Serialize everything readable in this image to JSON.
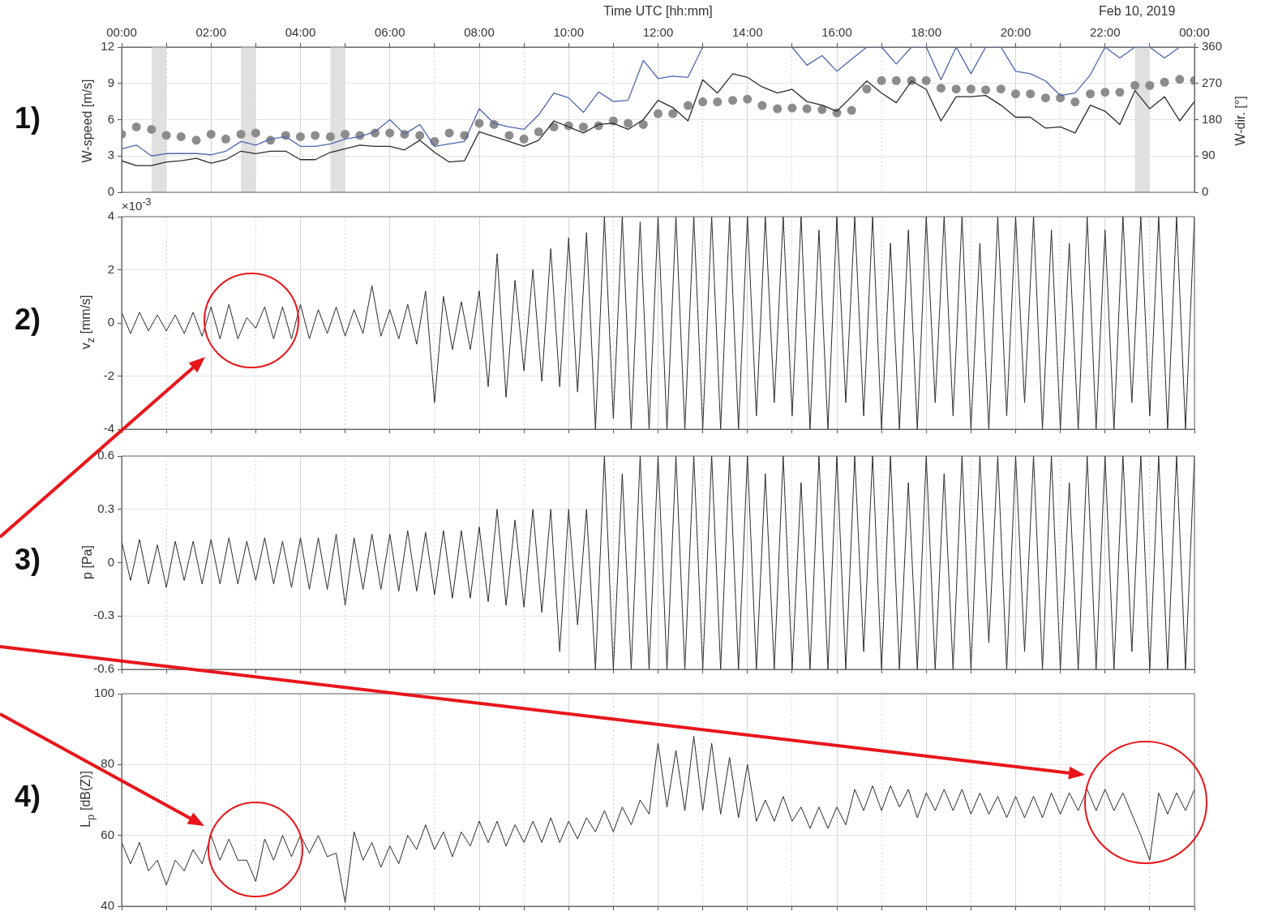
{
  "chart_data": [
    {
      "type": "line",
      "xlabel": "Time UTC [hh:mm]",
      "ylabel": "W-speed [m/s]",
      "y2label": "W-dir. [°]",
      "annotations": [
        "1)",
        "Feb 10, 2019"
      ],
      "x": [
        0,
        0.33,
        0.67,
        1,
        1.33,
        1.67,
        2,
        2.33,
        2.67,
        3,
        3.33,
        3.67,
        4,
        4.33,
        4.67,
        5,
        5.33,
        5.67,
        6,
        6.33,
        6.67,
        7,
        7.33,
        7.67,
        8,
        8.33,
        8.67,
        9,
        9.33,
        9.67,
        10,
        10.33,
        10.67,
        11,
        11.33,
        11.67,
        12,
        12.33,
        12.67,
        13,
        13.33,
        13.67,
        14,
        14.33,
        14.67,
        15,
        15.33,
        15.67,
        16,
        16.33,
        16.67,
        17,
        17.33,
        17.67,
        18,
        18.33,
        18.67,
        19,
        19.33,
        19.67,
        20,
        20.33,
        20.67,
        21,
        21.33,
        21.67,
        22,
        22.33,
        22.67,
        23,
        23.33,
        23.67,
        24
      ],
      "series": [
        {
          "color": "#4a67ad",
          "values": [
            3.6,
            3.9,
            3.0,
            3.2,
            3.2,
            3.2,
            3.1,
            3.4,
            4.2,
            3.9,
            4.4,
            4.6,
            3.8,
            3.8,
            4.0,
            4.4,
            4.6,
            5.0,
            6.0,
            4.8,
            5.6,
            3.8,
            4.0,
            4.2,
            6.9,
            5.7,
            5.4,
            5.2,
            6.4,
            8.2,
            7.8,
            6.6,
            8.3,
            7.5,
            7.6,
            10.9,
            9.4,
            9.6,
            9.5,
            12,
            null,
            null,
            null,
            null,
            null,
            12,
            10.5,
            11.3,
            10.0,
            11.0,
            12,
            12,
            10.6,
            12,
            12,
            9.3,
            12,
            9.8,
            12,
            12,
            10.0,
            9.8,
            9.2,
            8.0,
            8.2,
            9.7,
            12,
            11.1,
            12,
            12,
            11.1,
            12,
            null
          ]
        },
        {
          "color": "#2b2b2b",
          "values": [
            2.6,
            2.2,
            2.2,
            2.5,
            2.6,
            2.8,
            2.4,
            2.7,
            3.4,
            3.2,
            3.4,
            3.4,
            2.7,
            2.7,
            3.3,
            3.6,
            3.9,
            3.8,
            3.8,
            3.5,
            4.3,
            3.3,
            2.5,
            2.6,
            5.0,
            4.6,
            4.2,
            3.8,
            4.3,
            5.9,
            5.4,
            4.9,
            5.6,
            5.7,
            5.2,
            6.0,
            7.6,
            7.0,
            5.9,
            9.3,
            8.2,
            9.8,
            9.5,
            8.7,
            8.2,
            8.5,
            7.5,
            7.2,
            6.7,
            7.9,
            9.2,
            8.2,
            7.4,
            9.2,
            8.5,
            5.9,
            7.9,
            7.9,
            8.0,
            7.2,
            6.2,
            6.2,
            5.3,
            5.4,
            4.9,
            7.2,
            6.7,
            5.6,
            8.4,
            6.9,
            7.9,
            5.9,
            7.5
          ]
        },
        {
          "type": "scatter",
          "axis": "y2",
          "marker": "circle",
          "color": "#8c8c8c",
          "values": [
            144,
            162,
            156,
            141,
            138,
            129,
            144,
            132,
            144,
            147,
            129,
            141,
            138,
            141,
            138,
            144,
            141,
            147,
            147,
            144,
            141,
            126,
            147,
            141,
            171,
            168,
            141,
            132,
            150,
            162,
            165,
            162,
            165,
            177,
            171,
            168,
            195,
            195,
            215,
            224,
            224,
            228,
            231,
            215,
            207,
            209,
            207,
            205,
            197,
            203,
            256,
            277,
            277,
            277,
            277,
            258,
            256,
            256,
            254,
            256,
            244,
            244,
            234,
            234,
            224,
            244,
            248,
            248,
            265,
            265,
            273,
            280,
            277
          ]
        }
      ],
      "xlim": [
        0,
        24
      ],
      "xticks": [
        {
          "value": 0,
          "label": "00:00"
        },
        {
          "value": 1,
          "label": null
        },
        {
          "value": 2,
          "label": "02:00"
        },
        {
          "value": 3,
          "label": null
        },
        {
          "value": 4,
          "label": "04:00"
        },
        {
          "value": 5,
          "label": null
        },
        {
          "value": 6,
          "label": "06:00"
        },
        {
          "value": 7,
          "label": null
        },
        {
          "value": 8,
          "label": "08:00"
        },
        {
          "value": 9,
          "label": null
        },
        {
          "value": 10,
          "label": "10:00"
        },
        {
          "value": 11,
          "label": null
        },
        {
          "value": 12,
          "label": "12:00"
        },
        {
          "value": 13,
          "label": null
        },
        {
          "value": 14,
          "label": "14:00"
        },
        {
          "value": 15,
          "label": null
        },
        {
          "value": 16,
          "label": "16:00"
        },
        {
          "value": 17,
          "label": null
        },
        {
          "value": 18,
          "label": "18:00"
        },
        {
          "value": 19,
          "label": null
        },
        {
          "value": 20,
          "label": "20:00"
        },
        {
          "value": 21,
          "label": null
        },
        {
          "value": 22,
          "label": "22:00"
        },
        {
          "value": 23,
          "label": null
        },
        {
          "value": 24,
          "label": "00:00"
        }
      ],
      "ylim": [
        0,
        12
      ],
      "yticks": [
        0,
        3,
        6,
        9,
        12
      ],
      "y2lim": [
        0,
        360
      ],
      "y2ticks": [
        0,
        90,
        180,
        270,
        360
      ],
      "bands": [
        {
          "axis": "x",
          "from": 0.67,
          "to": 1,
          "color": "#e0e0e0"
        },
        {
          "axis": "x",
          "from": 2.67,
          "to": 3,
          "color": "#e0e0e0"
        },
        {
          "axis": "x",
          "from": 4.67,
          "to": 5,
          "color": "#e0e0e0"
        },
        {
          "axis": "x",
          "from": 22.67,
          "to": 23,
          "color": "#e0e0e0"
        }
      ],
      "grid": true
    },
    {
      "type": "line",
      "ylabel": "v$_{z}$ [mm/s]",
      "annotations": [
        "2)",
        "×10$^{-3}$"
      ],
      "x": [
        0,
        0.2,
        0.4,
        0.6,
        0.8,
        1,
        1.2,
        1.4,
        1.6,
        1.8,
        2,
        2.2,
        2.4,
        2.6,
        2.8,
        3,
        3.2,
        3.4,
        3.6,
        3.8,
        4,
        4.2,
        4.4,
        4.6,
        4.8,
        5,
        5.2,
        5.4,
        5.6,
        5.8,
        6,
        6.2,
        6.4,
        6.6,
        6.8,
        7,
        7.2,
        7.4,
        7.6,
        7.8,
        8,
        8.2,
        8.4,
        8.6,
        8.8,
        9,
        9.2,
        9.4,
        9.6,
        9.8,
        10,
        10.2,
        10.4,
        10.6,
        10.8,
        11,
        11.2,
        11.4,
        11.6,
        11.8,
        12,
        12.2,
        12.4,
        12.6,
        12.8,
        13,
        13.2,
        13.4,
        13.6,
        13.8,
        14,
        14.2,
        14.4,
        14.6,
        14.8,
        15,
        15.2,
        15.4,
        15.6,
        15.8,
        16,
        16.2,
        16.4,
        16.6,
        16.8,
        17,
        17.2,
        17.4,
        17.6,
        17.8,
        18,
        18.2,
        18.4,
        18.6,
        18.8,
        19,
        19.2,
        19.4,
        19.6,
        19.8,
        20,
        20.2,
        20.4,
        20.6,
        20.8,
        21,
        21.2,
        21.4,
        21.6,
        21.8,
        22,
        22.2,
        22.4,
        22.6,
        22.8,
        23,
        23.2,
        23.4,
        23.6,
        23.8,
        24
      ],
      "series": [
        {
          "color": "#2b2b2b",
          "values": [
            0.4,
            -0.4,
            0.4,
            -0.3,
            0.3,
            -0.3,
            0.3,
            -0.4,
            0.4,
            -0.5,
            0.6,
            -0.6,
            0.7,
            -0.6,
            0.2,
            -0.2,
            0.6,
            -0.6,
            0.6,
            -0.6,
            0.7,
            -0.6,
            0.5,
            -0.4,
            0.6,
            -0.5,
            0.5,
            -0.4,
            1.4,
            -0.5,
            0.5,
            -0.6,
            0.7,
            -0.8,
            1.2,
            -3.0,
            1,
            -1,
            0.8,
            -1,
            1.2,
            -2.4,
            2.6,
            -2.8,
            1.6,
            -1.8,
            2,
            -2.2,
            2.8,
            -2.4,
            3.2,
            -2.6,
            3.4,
            -4,
            4,
            -3.6,
            4,
            -4,
            3.8,
            -4,
            4,
            -4,
            4,
            -4,
            4,
            -4,
            4,
            -4,
            4,
            -4,
            4,
            -3.5,
            4,
            -3,
            4,
            -3.5,
            4,
            -4,
            3.5,
            -4,
            4,
            -3,
            4,
            -3.5,
            4,
            -4,
            3,
            -4,
            3.5,
            -4,
            4,
            -3,
            4,
            -3.5,
            4,
            -4,
            3,
            -4,
            4,
            -3.5,
            4,
            -3,
            4,
            -4,
            3.5,
            -4,
            3,
            -4,
            4,
            -4,
            3.5,
            -4,
            4,
            -3,
            4,
            -3.5,
            4,
            -4,
            4,
            -4,
            4
          ]
        }
      ],
      "xlim": [
        0,
        24
      ],
      "xticks": [
        {
          "value": 0,
          "label": null
        },
        {
          "value": 1,
          "label": null
        },
        {
          "value": 2,
          "label": null
        },
        {
          "value": 3,
          "label": null
        },
        {
          "value": 4,
          "label": null
        },
        {
          "value": 5,
          "label": null
        },
        {
          "value": 6,
          "label": null
        },
        {
          "value": 7,
          "label": null
        },
        {
          "value": 8,
          "label": null
        },
        {
          "value": 9,
          "label": null
        },
        {
          "value": 10,
          "label": null
        },
        {
          "value": 11,
          "label": null
        },
        {
          "value": 12,
          "label": null
        },
        {
          "value": 13,
          "label": null
        },
        {
          "value": 14,
          "label": null
        },
        {
          "value": 15,
          "label": null
        },
        {
          "value": 16,
          "label": null
        },
        {
          "value": 17,
          "label": null
        },
        {
          "value": 18,
          "label": null
        },
        {
          "value": 19,
          "label": null
        },
        {
          "value": 20,
          "label": null
        },
        {
          "value": 21,
          "label": null
        },
        {
          "value": 22,
          "label": null
        },
        {
          "value": 23,
          "label": null
        },
        {
          "value": 24,
          "label": null
        }
      ],
      "ylim": [
        -4,
        4
      ],
      "yticks": [
        -4,
        -2,
        0,
        2,
        4
      ],
      "grid": true,
      "tick_labels": "y"
    },
    {
      "type": "line",
      "ylabel": "p [Pa]",
      "annotations": [
        "3)"
      ],
      "x": [
        0,
        0.2,
        0.4,
        0.6,
        0.8,
        1,
        1.2,
        1.4,
        1.6,
        1.8,
        2,
        2.2,
        2.4,
        2.6,
        2.8,
        3,
        3.2,
        3.4,
        3.6,
        3.8,
        4,
        4.2,
        4.4,
        4.6,
        4.8,
        5,
        5.2,
        5.4,
        5.6,
        5.8,
        6,
        6.2,
        6.4,
        6.6,
        6.8,
        7,
        7.2,
        7.4,
        7.6,
        7.8,
        8,
        8.2,
        8.4,
        8.6,
        8.8,
        9,
        9.2,
        9.4,
        9.6,
        9.8,
        10,
        10.2,
        10.4,
        10.6,
        10.8,
        11,
        11.2,
        11.4,
        11.6,
        11.8,
        12,
        12.2,
        12.4,
        12.6,
        12.8,
        13,
        13.2,
        13.4,
        13.6,
        13.8,
        14,
        14.2,
        14.4,
        14.6,
        14.8,
        15,
        15.2,
        15.4,
        15.6,
        15.8,
        16,
        16.2,
        16.4,
        16.6,
        16.8,
        17,
        17.2,
        17.4,
        17.6,
        17.8,
        18,
        18.2,
        18.4,
        18.6,
        18.8,
        19,
        19.2,
        19.4,
        19.6,
        19.8,
        20,
        20.2,
        20.4,
        20.6,
        20.8,
        21,
        21.2,
        21.4,
        21.6,
        21.8,
        22,
        22.2,
        22.4,
        22.6,
        22.8,
        23,
        23.2,
        23.4,
        23.6,
        23.8,
        24
      ],
      "series": [
        {
          "color": "#2b2b2b",
          "values": [
            0.12,
            -0.1,
            0.13,
            -0.12,
            0.1,
            -0.14,
            0.12,
            -0.1,
            0.12,
            -0.12,
            0.13,
            -0.12,
            0.14,
            -0.12,
            0.12,
            -0.1,
            0.14,
            -0.12,
            0.12,
            -0.14,
            0.14,
            -0.15,
            0.14,
            -0.15,
            0.16,
            -0.24,
            0.14,
            -0.15,
            0.16,
            -0.15,
            0.16,
            -0.16,
            0.18,
            -0.16,
            0.17,
            -0.18,
            0.18,
            -0.2,
            0.18,
            -0.2,
            0.2,
            -0.22,
            0.3,
            -0.24,
            0.24,
            -0.25,
            0.3,
            -0.28,
            0.3,
            -0.5,
            0.3,
            -0.35,
            0.3,
            -0.6,
            0.6,
            -0.6,
            0.5,
            -0.6,
            0.6,
            -0.6,
            0.6,
            -0.6,
            0.6,
            -0.6,
            0.6,
            -0.6,
            0.6,
            -0.6,
            0.6,
            -0.6,
            0.6,
            -0.6,
            0.5,
            -0.6,
            0.6,
            -0.6,
            0.45,
            -0.6,
            0.6,
            -0.6,
            0.6,
            -0.6,
            0.6,
            -0.5,
            0.6,
            -0.6,
            0.6,
            -0.6,
            0.45,
            -0.6,
            0.6,
            -0.6,
            0.5,
            -0.6,
            0.6,
            -0.6,
            0.6,
            -0.45,
            0.6,
            -0.6,
            0.6,
            -0.5,
            0.6,
            -0.6,
            0.6,
            -0.6,
            0.45,
            -0.6,
            0.6,
            -0.6,
            0.6,
            -0.6,
            0.6,
            -0.5,
            0.6,
            -0.6,
            0.6,
            -0.6,
            0.6,
            -0.6,
            0.6
          ]
        }
      ],
      "xlim": [
        0,
        24
      ],
      "xticks": [
        {
          "value": 0,
          "label": null
        },
        {
          "value": 1,
          "label": null
        },
        {
          "value": 2,
          "label": null
        },
        {
          "value": 3,
          "label": null
        },
        {
          "value": 4,
          "label": null
        },
        {
          "value": 5,
          "label": null
        },
        {
          "value": 6,
          "label": null
        },
        {
          "value": 7,
          "label": null
        },
        {
          "value": 8,
          "label": null
        },
        {
          "value": 9,
          "label": null
        },
        {
          "value": 10,
          "label": null
        },
        {
          "value": 11,
          "label": null
        },
        {
          "value": 12,
          "label": null
        },
        {
          "value": 13,
          "label": null
        },
        {
          "value": 14,
          "label": null
        },
        {
          "value": 15,
          "label": null
        },
        {
          "value": 16,
          "label": null
        },
        {
          "value": 17,
          "label": null
        },
        {
          "value": 18,
          "label": null
        },
        {
          "value": 19,
          "label": null
        },
        {
          "value": 20,
          "label": null
        },
        {
          "value": 21,
          "label": null
        },
        {
          "value": 22,
          "label": null
        },
        {
          "value": 23,
          "label": null
        },
        {
          "value": 24,
          "label": null
        }
      ],
      "ylim": [
        -0.6,
        0.6
      ],
      "yticks": [
        -0.6,
        -0.3,
        0,
        0.3,
        0.6
      ],
      "grid": true,
      "tick_labels": "y"
    },
    {
      "type": "line",
      "ylabel": "L$_{p}$ [dB(Z)]",
      "annotations": [
        "4)"
      ],
      "x": [
        0,
        0.2,
        0.4,
        0.6,
        0.8,
        1,
        1.2,
        1.4,
        1.6,
        1.8,
        2,
        2.2,
        2.4,
        2.6,
        2.8,
        3,
        3.2,
        3.4,
        3.6,
        3.8,
        4,
        4.2,
        4.4,
        4.6,
        4.8,
        5,
        5.2,
        5.4,
        5.6,
        5.8,
        6,
        6.2,
        6.4,
        6.6,
        6.8,
        7,
        7.2,
        7.4,
        7.6,
        7.8,
        8,
        8.2,
        8.4,
        8.6,
        8.8,
        9,
        9.2,
        9.4,
        9.6,
        9.8,
        10,
        10.2,
        10.4,
        10.6,
        10.8,
        11,
        11.2,
        11.4,
        11.6,
        11.8,
        12,
        12.2,
        12.4,
        12.6,
        12.8,
        13,
        13.2,
        13.4,
        13.6,
        13.8,
        14,
        14.2,
        14.4,
        14.6,
        14.8,
        15,
        15.2,
        15.4,
        15.6,
        15.8,
        16,
        16.2,
        16.4,
        16.6,
        16.8,
        17,
        17.2,
        17.4,
        17.6,
        17.8,
        18,
        18.2,
        18.4,
        18.6,
        18.8,
        19,
        19.2,
        19.4,
        19.6,
        19.8,
        20,
        20.2,
        20.4,
        20.6,
        20.8,
        21,
        21.2,
        21.4,
        21.6,
        21.8,
        22,
        22.2,
        22.4,
        22.6,
        22.8,
        23,
        23.2,
        23.4,
        23.6,
        23.8,
        24
      ],
      "series": [
        {
          "color": "#2b2b2b",
          "values": [
            58,
            52,
            58,
            50,
            53,
            46,
            53,
            50,
            56,
            52,
            60,
            53,
            59,
            53,
            53,
            47,
            59,
            53,
            60,
            54,
            60,
            55,
            60,
            54,
            55,
            41,
            61,
            53,
            58,
            51,
            57,
            52,
            60,
            56,
            63,
            56,
            61,
            54,
            61,
            57,
            64,
            58,
            64,
            57,
            63,
            58,
            64,
            58,
            65,
            58,
            64,
            59,
            65,
            61,
            67,
            61,
            68,
            63,
            70,
            66,
            86,
            68,
            84,
            67,
            88,
            67,
            86,
            66,
            82,
            65,
            80,
            64,
            70,
            64,
            71,
            64,
            68,
            62,
            68,
            62,
            68,
            63,
            73,
            67,
            74,
            67,
            74,
            68,
            73,
            65,
            72,
            67,
            73,
            67,
            73,
            66,
            72,
            66,
            71,
            65,
            71,
            65,
            71,
            65,
            72,
            66,
            72,
            67,
            73,
            67,
            73,
            67,
            72,
            66,
            60,
            53,
            72,
            66,
            72,
            67,
            73
          ]
        }
      ],
      "xlim": [
        0,
        24
      ],
      "xticks": [
        {
          "value": 0,
          "label": null
        },
        {
          "value": 1,
          "label": null
        },
        {
          "value": 2,
          "label": null
        },
        {
          "value": 3,
          "label": null
        },
        {
          "value": 4,
          "label": null
        },
        {
          "value": 5,
          "label": null
        },
        {
          "value": 6,
          "label": null
        },
        {
          "value": 7,
          "label": null
        },
        {
          "value": 8,
          "label": null
        },
        {
          "value": 9,
          "label": null
        },
        {
          "value": 10,
          "label": null
        },
        {
          "value": 11,
          "label": null
        },
        {
          "value": 12,
          "label": null
        },
        {
          "value": 13,
          "label": null
        },
        {
          "value": 14,
          "label": null
        },
        {
          "value": 15,
          "label": null
        },
        {
          "value": 16,
          "label": null
        },
        {
          "value": 17,
          "label": null
        },
        {
          "value": 18,
          "label": null
        },
        {
          "value": 19,
          "label": null
        },
        {
          "value": 20,
          "label": null
        },
        {
          "value": 21,
          "label": null
        },
        {
          "value": 22,
          "label": null
        },
        {
          "value": 23,
          "label": null
        },
        {
          "value": 24,
          "label": null
        }
      ],
      "ylim": [
        40,
        100
      ],
      "yticks": [
        40,
        60,
        80,
        100
      ],
      "grid": true,
      "tick_labels": "y"
    }
  ]
}
